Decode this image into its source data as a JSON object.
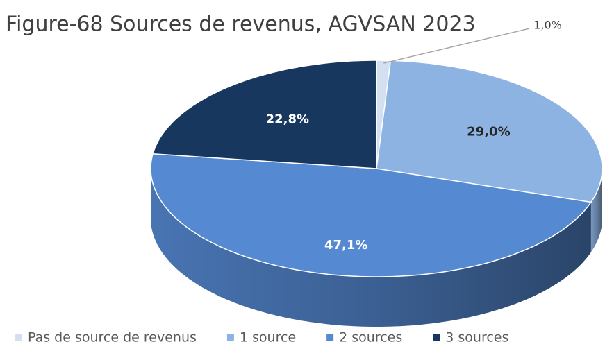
{
  "chart_data": {
    "type": "pie",
    "title": "Figure-68 Sources de revenus, AGVSAN 2023",
    "categories": [
      "Pas de source de revenus",
      "1 source",
      "2 sources",
      "3 sources"
    ],
    "values": [
      1.0,
      29.0,
      47.1,
      22.8
    ],
    "value_labels": [
      "1,0%",
      "29,0%",
      "47,1%",
      "22,8%"
    ],
    "colors": [
      "#d3e0f1",
      "#8db3e2",
      "#5589d2",
      "#17375e"
    ]
  }
}
